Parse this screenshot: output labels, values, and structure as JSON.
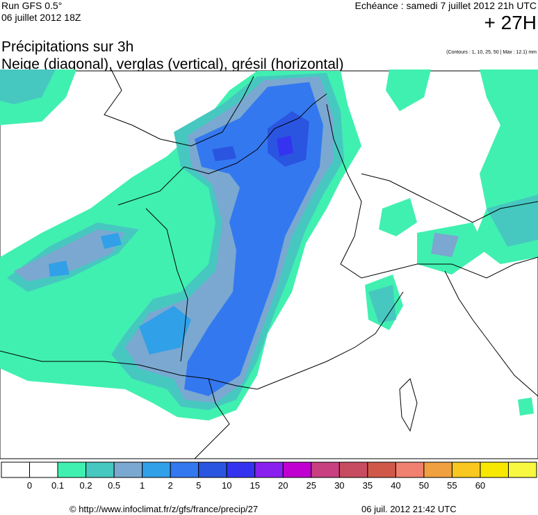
{
  "header": {
    "run": "Run GFS 0.5°",
    "date": "06 juillet 2012 18Z",
    "echeance": "Echéance : samedi 7 juillet 2012 21h UTC",
    "offset": "+ 27H",
    "title": "Précipitations sur 3h",
    "subtitle": "Neige (diagonal), verglas (vertical), grésil (horizontal)",
    "contours": "(Contours : 1, 10, 25, 50 | Max : 12.1) mm"
  },
  "legend": {
    "labels": [
      "0",
      "0.1",
      "0.2",
      "0.5",
      "1",
      "2",
      "5",
      "10",
      "15",
      "20",
      "25",
      "30",
      "35",
      "40",
      "50",
      "55",
      "60"
    ]
  },
  "footer": {
    "url": "© http://www.infoclimat.fr/z/gfs/france/precip/27",
    "timestamp": "06 juil. 2012 21:42 UTC"
  }
}
